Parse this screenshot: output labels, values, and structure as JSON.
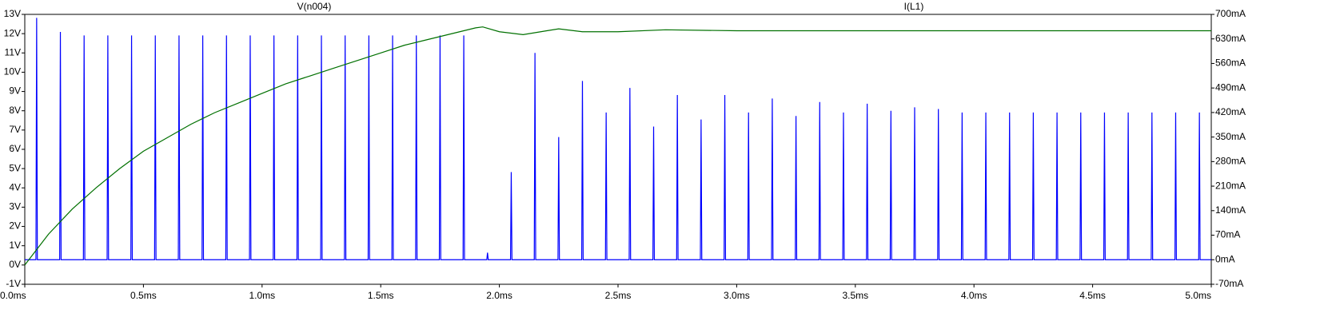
{
  "chart_data": {
    "type": "line",
    "xticks": [
      {
        "value": 0,
        "label": "0.0ms"
      },
      {
        "value": 0.5,
        "label": "0.5ms"
      },
      {
        "value": 1,
        "label": "1.0ms"
      },
      {
        "value": 1.5,
        "label": "1.5ms"
      },
      {
        "value": 2,
        "label": "2.0ms"
      },
      {
        "value": 2.5,
        "label": "2.5ms"
      },
      {
        "value": 3,
        "label": "3.0ms"
      },
      {
        "value": 3.5,
        "label": "3.5ms"
      },
      {
        "value": 4,
        "label": "4.0ms"
      },
      {
        "value": 4.5,
        "label": "4.5ms"
      },
      {
        "value": 5,
        "label": "5.0ms"
      }
    ],
    "xlim": [
      0,
      5
    ],
    "ylim": [
      -1,
      13
    ],
    "yticks": [
      {
        "value": -1,
        "label": "-1V"
      },
      {
        "value": 0,
        "label": "0V"
      },
      {
        "value": 1,
        "label": "1V"
      },
      {
        "value": 2,
        "label": "2V"
      },
      {
        "value": 3,
        "label": "3V"
      },
      {
        "value": 4,
        "label": "4V"
      },
      {
        "value": 5,
        "label": "5V"
      },
      {
        "value": 6,
        "label": "6V"
      },
      {
        "value": 7,
        "label": "7V"
      },
      {
        "value": 8,
        "label": "8V"
      },
      {
        "value": 9,
        "label": "9V"
      },
      {
        "value": 10,
        "label": "10V"
      },
      {
        "value": 11,
        "label": "11V"
      },
      {
        "value": 12,
        "label": "12V"
      },
      {
        "value": 13,
        "label": "13V"
      }
    ],
    "y2lim": [
      -70,
      700
    ],
    "y2ticks": [
      {
        "value": -70,
        "label": "-70mA"
      },
      {
        "value": 0,
        "label": "0mA"
      },
      {
        "value": 70,
        "label": "70mA"
      },
      {
        "value": 140,
        "label": "140mA"
      },
      {
        "value": 210,
        "label": "210mA"
      },
      {
        "value": 280,
        "label": "280mA"
      },
      {
        "value": 350,
        "label": "350mA"
      },
      {
        "value": 420,
        "label": "420mA"
      },
      {
        "value": 490,
        "label": "490mA"
      },
      {
        "value": 560,
        "label": "560mA"
      },
      {
        "value": 630,
        "label": "630mA"
      },
      {
        "value": 700,
        "label": "700mA"
      }
    ],
    "series": [
      {
        "name": "V(n004)",
        "color": "#007000",
        "axis": "y",
        "x": [
          0,
          0.1,
          0.2,
          0.3,
          0.4,
          0.5,
          0.6,
          0.7,
          0.8,
          0.9,
          1.0,
          1.1,
          1.2,
          1.3,
          1.4,
          1.5,
          1.6,
          1.7,
          1.8,
          1.9,
          1.93,
          2.0,
          2.1,
          2.2,
          2.25,
          2.35,
          2.5,
          2.7,
          3.0,
          3.5,
          4.0,
          4.5,
          5.0
        ],
        "values": [
          0,
          1.6,
          2.9,
          4.0,
          5.0,
          5.9,
          6.6,
          7.3,
          7.9,
          8.4,
          8.9,
          9.4,
          9.8,
          10.2,
          10.6,
          11.0,
          11.4,
          11.7,
          12.0,
          12.3,
          12.35,
          12.1,
          11.95,
          12.15,
          12.25,
          12.1,
          12.1,
          12.2,
          12.15,
          12.15,
          12.15,
          12.15,
          12.15
        ]
      },
      {
        "name": "I(L1)",
        "color": "#0000ff",
        "axis": "y2",
        "x": [
          0,
          0.047,
          0.05,
          0.053,
          0.147,
          0.15,
          0.153,
          0.247,
          0.25,
          0.253,
          0.347,
          0.35,
          0.353,
          0.447,
          0.45,
          0.453,
          0.547,
          0.55,
          0.553,
          0.647,
          0.65,
          0.653,
          0.747,
          0.75,
          0.753,
          0.847,
          0.85,
          0.853,
          0.947,
          0.95,
          0.953,
          1.047,
          1.05,
          1.053,
          1.147,
          1.15,
          1.153,
          1.247,
          1.25,
          1.253,
          1.347,
          1.35,
          1.353,
          1.447,
          1.45,
          1.453,
          1.547,
          1.55,
          1.553,
          1.647,
          1.65,
          1.653,
          1.747,
          1.75,
          1.753,
          1.847,
          1.85,
          1.853,
          1.947,
          1.95,
          1.953,
          2.047,
          2.05,
          2.053,
          2.147,
          2.15,
          2.153,
          2.247,
          2.25,
          2.253,
          2.347,
          2.35,
          2.353,
          2.447,
          2.45,
          2.453,
          2.547,
          2.55,
          2.553,
          2.647,
          2.65,
          2.653,
          2.747,
          2.75,
          2.753,
          2.847,
          2.85,
          2.853,
          2.947,
          2.95,
          2.953,
          3.047,
          3.05,
          3.053,
          3.147,
          3.15,
          3.153,
          3.247,
          3.25,
          3.253,
          3.347,
          3.35,
          3.353,
          3.447,
          3.45,
          3.453,
          3.547,
          3.55,
          3.553,
          3.647,
          3.65,
          3.653,
          3.747,
          3.75,
          3.753,
          3.847,
          3.85,
          3.853,
          3.947,
          3.95,
          3.953,
          4.047,
          4.05,
          4.053,
          4.147,
          4.15,
          4.153,
          4.247,
          4.25,
          4.253,
          4.347,
          4.35,
          4.353,
          4.447,
          4.45,
          4.453,
          4.547,
          4.55,
          4.553,
          4.647,
          4.65,
          4.653,
          4.747,
          4.75,
          4.753,
          4.847,
          4.85,
          4.853,
          4.947,
          4.95,
          4.953,
          5
        ],
        "values": [
          0,
          0,
          690,
          0,
          0,
          650,
          0,
          0,
          640,
          0,
          0,
          640,
          0,
          0,
          640,
          0,
          0,
          640,
          0,
          0,
          640,
          0,
          0,
          640,
          0,
          0,
          640,
          0,
          0,
          640,
          0,
          0,
          640,
          0,
          0,
          640,
          0,
          0,
          640,
          0,
          0,
          640,
          0,
          0,
          640,
          0,
          0,
          640,
          0,
          0,
          640,
          0,
          0,
          640,
          0,
          0,
          640,
          0,
          0,
          20,
          0,
          0,
          250,
          0,
          0,
          590,
          0,
          0,
          350,
          0,
          0,
          510,
          0,
          0,
          420,
          0,
          0,
          490,
          0,
          0,
          380,
          0,
          0,
          470,
          0,
          0,
          400,
          0,
          0,
          470,
          0,
          0,
          420,
          0,
          0,
          460,
          0,
          0,
          410,
          0,
          0,
          450,
          0,
          0,
          420,
          0,
          0,
          445,
          0,
          0,
          425,
          0,
          0,
          435,
          0,
          0,
          430,
          0,
          0,
          420,
          0,
          0,
          420,
          0,
          0,
          420,
          0,
          0,
          420,
          0,
          0,
          420,
          0,
          0,
          420,
          0,
          0,
          420,
          0,
          0,
          420,
          0,
          0,
          420,
          0,
          0,
          420,
          0,
          0,
          420,
          0,
          0
        ]
      }
    ]
  }
}
